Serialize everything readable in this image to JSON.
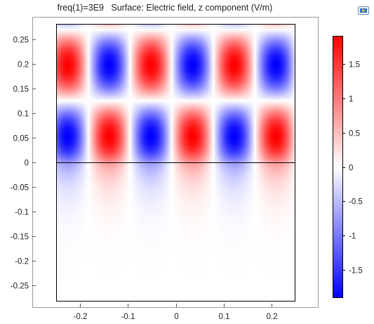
{
  "title": {
    "text": "freq(1)=3E9   Surface: Electric field, z component (V/m)"
  },
  "toolbar": {
    "export_icon": "image-export-icon"
  },
  "colors": {
    "positive": "#ff0000",
    "negative": "#0000ff",
    "zero": "#ffffff",
    "axis": "#000000",
    "background": "#ffffff"
  },
  "chart_data": {
    "type": "heatmap",
    "title": "freq(1)=3E9   Surface: Electric field, z component (V/m)",
    "field": "Electric field, z component",
    "unit": "V/m",
    "xlabel": "",
    "ylabel": "",
    "xlim": [
      -0.25,
      0.25
    ],
    "ylim": [
      -0.29,
      0.29
    ],
    "x_ticks": [
      -0.2,
      -0.1,
      0,
      0.1,
      0.2
    ],
    "x_tick_labels": [
      "-0.2",
      "-0.1",
      "0",
      "0.1",
      "0.2"
    ],
    "y_ticks": [
      0.25,
      0.2,
      0.15,
      0.1,
      0.05,
      0,
      -0.05,
      -0.1,
      -0.15,
      -0.2,
      -0.25
    ],
    "y_tick_labels": [
      "0.25",
      "0.2",
      "0.15",
      "0.1",
      "0.05",
      "0",
      "-0.05",
      "-0.1",
      "-0.15",
      "-0.2",
      "-0.25"
    ],
    "domain": {
      "x": [
        -0.25,
        0.25
      ],
      "y": [
        -0.29,
        0.29
      ]
    },
    "interface_line_y": 0,
    "pattern": {
      "upper_region": "standing wave cells, alternating sign in x and y",
      "x_period": 0.087,
      "y_period": 0.145,
      "x_center_of_first_positive_cell": -0.226,
      "y_center_of_first_positive_row": 0.198,
      "amplitude": 1.9,
      "lower_region": "evanescent decay below y=0",
      "decay_length": 0.045
    },
    "colorbar": {
      "min": -1.9,
      "max": 1.9,
      "ticks": [
        1.5,
        1,
        0.5,
        0,
        -0.5,
        -1,
        -1.5
      ],
      "tick_labels": [
        "1.5",
        "1",
        "0.5",
        "0",
        "-0.5",
        "-1",
        "-1.5"
      ],
      "colormap": "blue-white-red"
    },
    "grid": false,
    "legend": "colorbar-right"
  }
}
